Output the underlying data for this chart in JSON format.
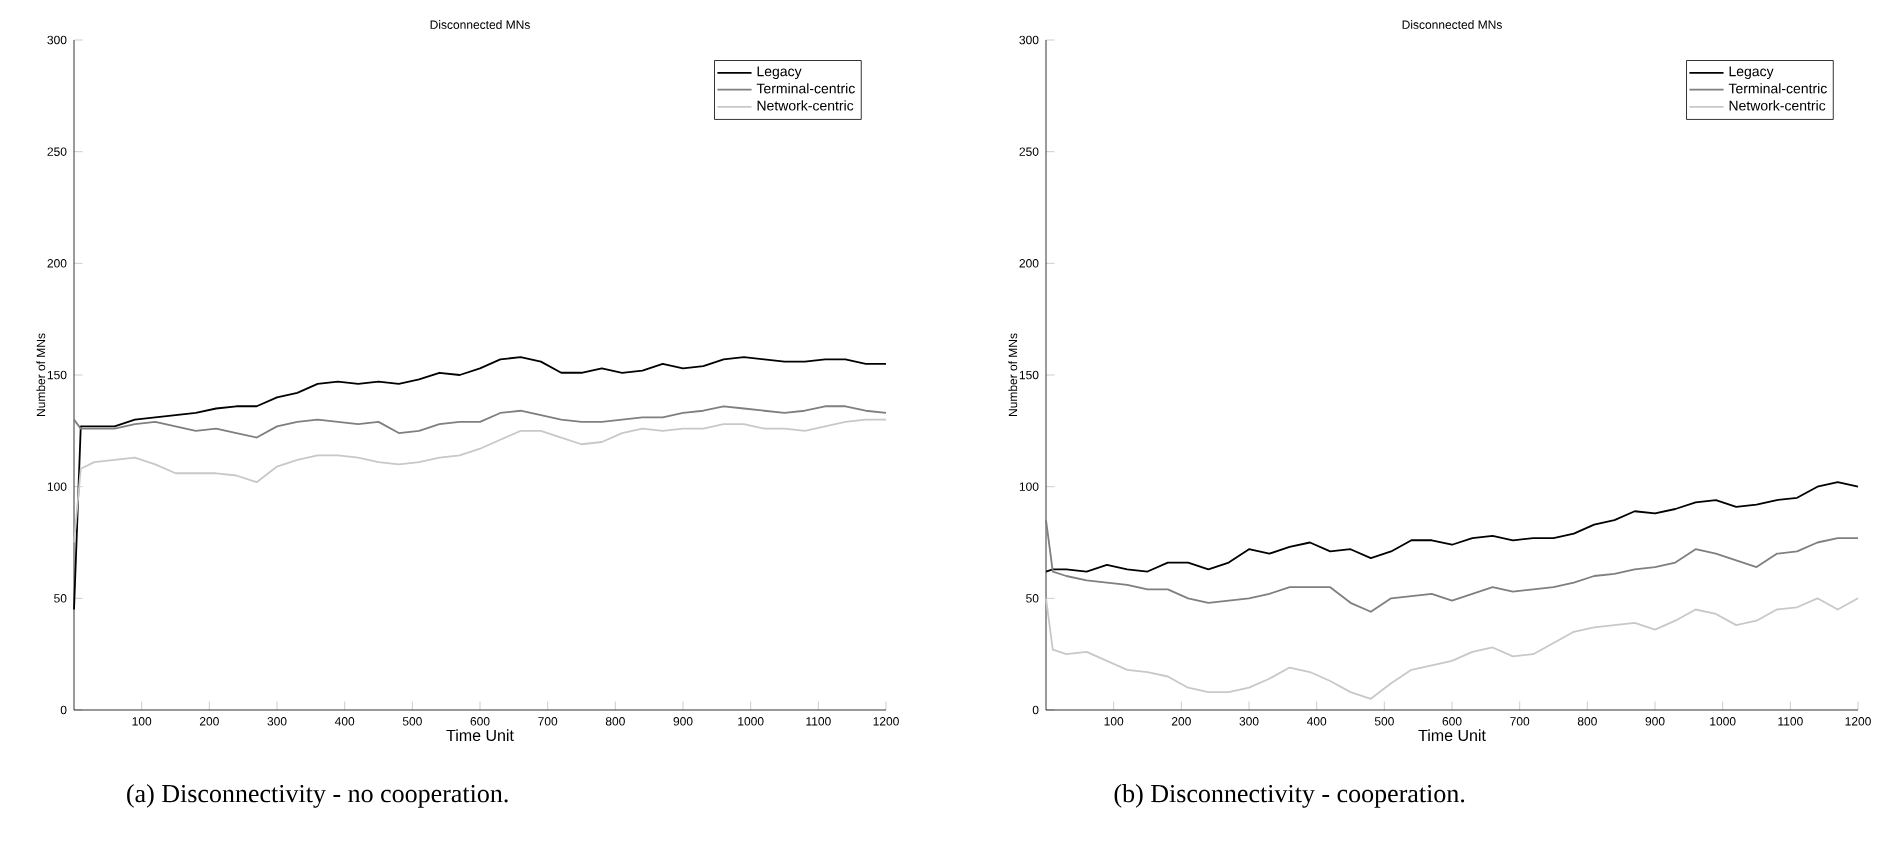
{
  "chart_data": [
    {
      "type": "line",
      "title": "Disconnected MNs",
      "xlabel": "Time Unit",
      "ylabel": "Number of MNs",
      "annotations": [
        "(a) Disconnectivity - no cooperation."
      ],
      "x": [
        0,
        10,
        30,
        60,
        90,
        120,
        150,
        180,
        210,
        240,
        270,
        300,
        330,
        360,
        390,
        420,
        450,
        480,
        510,
        540,
        570,
        600,
        630,
        660,
        690,
        720,
        750,
        780,
        810,
        840,
        870,
        900,
        930,
        960,
        990,
        1020,
        1050,
        1080,
        1110,
        1140,
        1170,
        1200
      ],
      "series": [
        {
          "name": "Legacy",
          "color": "#000000",
          "values": [
            45,
            127,
            127,
            127,
            130,
            131,
            132,
            133,
            135,
            136,
            136,
            140,
            142,
            146,
            147,
            146,
            147,
            146,
            148,
            151,
            150,
            153,
            157,
            158,
            156,
            151,
            151,
            153,
            151,
            152,
            155,
            153,
            154,
            157,
            158,
            157,
            156,
            156,
            157,
            157,
            155,
            155
          ]
        },
        {
          "name": "Terminal-centric",
          "color": "#7f7f7f",
          "values": [
            130,
            126,
            126,
            126,
            128,
            129,
            127,
            125,
            126,
            124,
            122,
            127,
            129,
            130,
            129,
            128,
            129,
            124,
            125,
            128,
            129,
            129,
            133,
            134,
            132,
            130,
            129,
            129,
            130,
            131,
            131,
            133,
            134,
            136,
            135,
            134,
            133,
            134,
            136,
            136,
            134,
            133
          ]
        },
        {
          "name": "Network-centric",
          "color": "#c8c8c8",
          "values": [
            75,
            108,
            111,
            112,
            113,
            110,
            106,
            106,
            106,
            105,
            102,
            109,
            112,
            114,
            114,
            113,
            111,
            110,
            111,
            113,
            114,
            117,
            121,
            125,
            125,
            122,
            119,
            120,
            124,
            126,
            125,
            126,
            126,
            128,
            128,
            126,
            126,
            125,
            127,
            129,
            130,
            130
          ]
        }
      ],
      "xlim": [
        0,
        1200
      ],
      "ylim": [
        0,
        300
      ],
      "xticks": [
        100,
        200,
        300,
        400,
        500,
        600,
        700,
        800,
        900,
        1000,
        1100,
        1200
      ],
      "yticks": [
        0,
        50,
        100,
        150,
        200,
        250,
        300
      ],
      "legend": "top right"
    },
    {
      "type": "line",
      "title": "Disconnected MNs",
      "xlabel": "Time Unit",
      "ylabel": "Number of MNs",
      "annotations": [
        "(b) Disconnectivity - cooperation."
      ],
      "x": [
        0,
        10,
        30,
        60,
        90,
        120,
        150,
        180,
        210,
        240,
        270,
        300,
        330,
        360,
        390,
        420,
        450,
        480,
        510,
        540,
        570,
        600,
        630,
        660,
        690,
        720,
        750,
        780,
        810,
        840,
        870,
        900,
        930,
        960,
        990,
        1020,
        1050,
        1080,
        1110,
        1140,
        1170,
        1200
      ],
      "series": [
        {
          "name": "Legacy",
          "color": "#000000",
          "values": [
            62,
            63,
            63,
            62,
            65,
            63,
            62,
            66,
            66,
            63,
            66,
            72,
            70,
            73,
            75,
            71,
            72,
            68,
            71,
            76,
            76,
            74,
            77,
            78,
            76,
            77,
            77,
            79,
            83,
            85,
            89,
            88,
            90,
            93,
            94,
            91,
            92,
            94,
            95,
            100,
            102,
            100
          ]
        },
        {
          "name": "Terminal-centric",
          "color": "#7f7f7f",
          "values": [
            85,
            62,
            60,
            58,
            57,
            56,
            54,
            54,
            50,
            48,
            49,
            50,
            52,
            55,
            55,
            55,
            48,
            44,
            50,
            51,
            52,
            49,
            52,
            55,
            53,
            54,
            55,
            57,
            60,
            61,
            63,
            64,
            66,
            72,
            70,
            67,
            64,
            70,
            71,
            75,
            77,
            77
          ]
        },
        {
          "name": "Network-centric",
          "color": "#c8c8c8",
          "values": [
            50,
            27,
            25,
            26,
            22,
            18,
            17,
            15,
            10,
            8,
            8,
            10,
            14,
            19,
            17,
            13,
            8,
            5,
            12,
            18,
            20,
            22,
            26,
            28,
            24,
            25,
            30,
            35,
            37,
            38,
            39,
            36,
            40,
            45,
            43,
            38,
            40,
            45,
            46,
            50,
            45,
            50
          ]
        }
      ],
      "xlim": [
        0,
        1200
      ],
      "ylim": [
        0,
        300
      ],
      "xticks": [
        100,
        200,
        300,
        400,
        500,
        600,
        700,
        800,
        900,
        1000,
        1100,
        1200
      ],
      "yticks": [
        0,
        50,
        100,
        150,
        200,
        250,
        300
      ],
      "legend": "top right"
    }
  ]
}
